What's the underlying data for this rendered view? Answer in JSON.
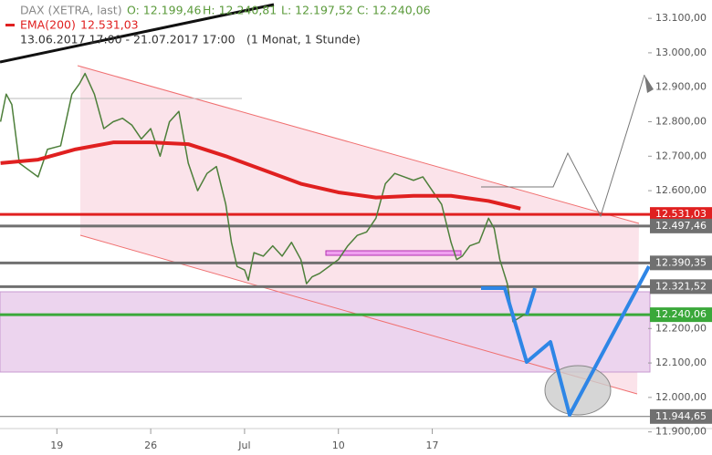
{
  "chart_data": {
    "type": "line",
    "instrument": "DAX (XETRA, last)",
    "ohlc": [
      "O: 12.199,46",
      "H: 12.240,81",
      "L: 12.197,52",
      "C: 12.240,06"
    ],
    "indicator": "EMA(200)",
    "indicator_value": "12.531,03",
    "period": "13.06.2017 17:00 - 21.07.2017 17:00",
    "resolution": "(1 Monat, 1 Stunde)",
    "xlim": [
      0.97,
      35.5
    ],
    "xticks": [
      {
        "value": 4,
        "label": "19"
      },
      {
        "value": 9,
        "label": "26"
      },
      {
        "value": 14,
        "label": "Jul"
      },
      {
        "value": 19,
        "label": "10"
      },
      {
        "value": 24,
        "label": "17"
      }
    ],
    "ylim": [
      11870,
      13140
    ],
    "yticks": [
      {
        "value": 13100,
        "label": "13.100,00"
      },
      {
        "value": 13000,
        "label": "13.000,00"
      },
      {
        "value": 12900,
        "label": "12.900,00"
      },
      {
        "value": 12800,
        "label": "12.800,00"
      },
      {
        "value": 12700,
        "label": "12.700,00"
      },
      {
        "value": 12600,
        "label": "12.600,00"
      },
      {
        "value": 12200,
        "label": "12.200,00"
      },
      {
        "value": 12100,
        "label": "12.100,00"
      },
      {
        "value": 12000,
        "label": "12.000,00"
      },
      {
        "value": 11900,
        "label": "11.900,00"
      }
    ],
    "series": [
      {
        "name": "DAX (XETRA, last)",
        "color": "#4d7f3a",
        "x": [
          1.0,
          1.3,
          1.6,
          2.0,
          2.5,
          3.0,
          3.5,
          4.2,
          4.8,
          5.2,
          5.5,
          6.0,
          6.5,
          7.0,
          7.5,
          8.0,
          8.5,
          9.0,
          9.5,
          10.0,
          10.5,
          11.0,
          11.5,
          12.0,
          12.5,
          13.0,
          13.3,
          13.6,
          14.0,
          14.2,
          14.5,
          15.0,
          15.5,
          16.0,
          16.5,
          17.0,
          17.3,
          17.6,
          18.0,
          18.5,
          19.0,
          19.5,
          20.0,
          20.5,
          21.0,
          21.5,
          22.0,
          22.5,
          23.0,
          23.5,
          24.0,
          24.5,
          25.0,
          25.3,
          25.6,
          26.0,
          26.5,
          27.0,
          27.3,
          27.6,
          28.0,
          28.3,
          28.9
        ],
        "values": [
          12800,
          12880,
          12850,
          12680,
          12660,
          12640,
          12720,
          12730,
          12880,
          12910,
          12940,
          12880,
          12780,
          12800,
          12810,
          12790,
          12750,
          12780,
          12700,
          12800,
          12830,
          12680,
          12600,
          12650,
          12670,
          12560,
          12450,
          12380,
          12370,
          12340,
          12420,
          12410,
          12440,
          12410,
          12450,
          12400,
          12330,
          12350,
          12360,
          12380,
          12400,
          12440,
          12470,
          12480,
          12520,
          12620,
          12650,
          12640,
          12630,
          12640,
          12600,
          12560,
          12450,
          12400,
          12410,
          12440,
          12450,
          12520,
          12490,
          12400,
          12330,
          12220,
          12240
        ]
      },
      {
        "name": "EMA(200)",
        "color": "#e02020",
        "x": [
          1,
          3,
          5,
          7,
          9,
          11,
          13,
          15,
          17,
          19,
          21,
          23,
          25,
          27,
          28.7
        ],
        "values": [
          12680,
          12690,
          12720,
          12740,
          12740,
          12735,
          12700,
          12660,
          12620,
          12595,
          12580,
          12585,
          12585,
          12570,
          12548
        ]
      }
    ],
    "price_labels": [
      {
        "value": 12531.03,
        "label": "12.531,03",
        "color": "#e02020"
      },
      {
        "value": 12497.46,
        "label": "12.497,46",
        "color": "#707070"
      },
      {
        "value": 12390.35,
        "label": "12.390,35",
        "color": "#707070"
      },
      {
        "value": 12321.52,
        "label": "12.321,52",
        "color": "#707070"
      },
      {
        "value": 12240.06,
        "label": "12.240,06",
        "color": "#3aa83a"
      },
      {
        "value": 11944.65,
        "label": "11.944,65",
        "color": "#707070"
      }
    ]
  }
}
